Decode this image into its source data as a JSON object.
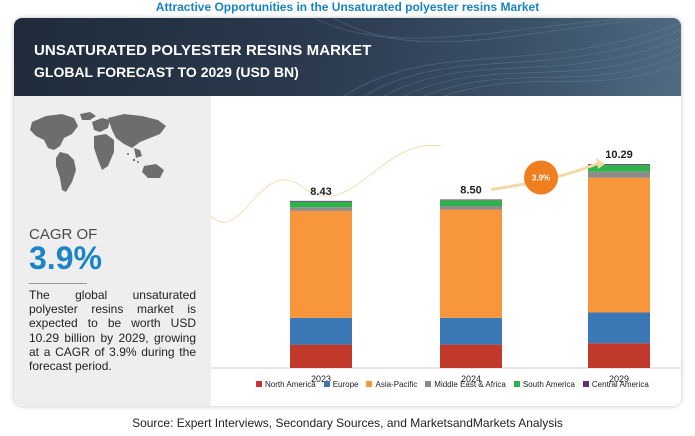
{
  "page_heading": "Attractive Opportunities in the Unsaturated polyester resins Market",
  "banner": {
    "title": "UNSATURATED POLYESTER RESINS MARKET",
    "subtitle": "GLOBAL FORECAST TO 2029 (USD BN)"
  },
  "cagr": {
    "label": "CAGR OF",
    "value": "3.9%"
  },
  "description": "The global unsaturated polyester resins market is expected to be worth USD 10.29 billion by 2029, growing at a CAGR of 3.9% during the forecast period.",
  "source": "Source: Expert Interviews, Secondary Sources, and MarketsandMarkets Analysis",
  "colors": {
    "north_america": "#c0392b",
    "europe": "#3b78b6",
    "asia_pacific": "#f8963c",
    "middle_east_africa": "#8c8c8c",
    "south_america": "#2db34a",
    "central_america": "#6c2a7a",
    "heading": "#1a84c6",
    "cagr_bubble": "#f07d1e"
  },
  "chart_data": {
    "type": "bar",
    "stacked": true,
    "categories": [
      "2023",
      "2024",
      "2029"
    ],
    "totals_labels": [
      "8.43",
      "8.50",
      "10.29"
    ],
    "series": [
      {
        "name": "North America",
        "values": [
          1.18,
          1.18,
          1.25
        ]
      },
      {
        "name": "Europe",
        "values": [
          1.35,
          1.35,
          1.55
        ]
      },
      {
        "name": "Asia-Pacific",
        "values": [
          5.4,
          5.46,
          6.8
        ]
      },
      {
        "name": "Middle East & Africa",
        "values": [
          0.18,
          0.18,
          0.3
        ]
      },
      {
        "name": "South America",
        "values": [
          0.28,
          0.29,
          0.35
        ]
      },
      {
        "name": "Central America",
        "values": [
          0.04,
          0.04,
          0.04
        ]
      }
    ],
    "growth_bubble": "3.9%",
    "ylim": [
      0,
      10.29
    ],
    "grid": false,
    "legend_position": "bottom"
  }
}
